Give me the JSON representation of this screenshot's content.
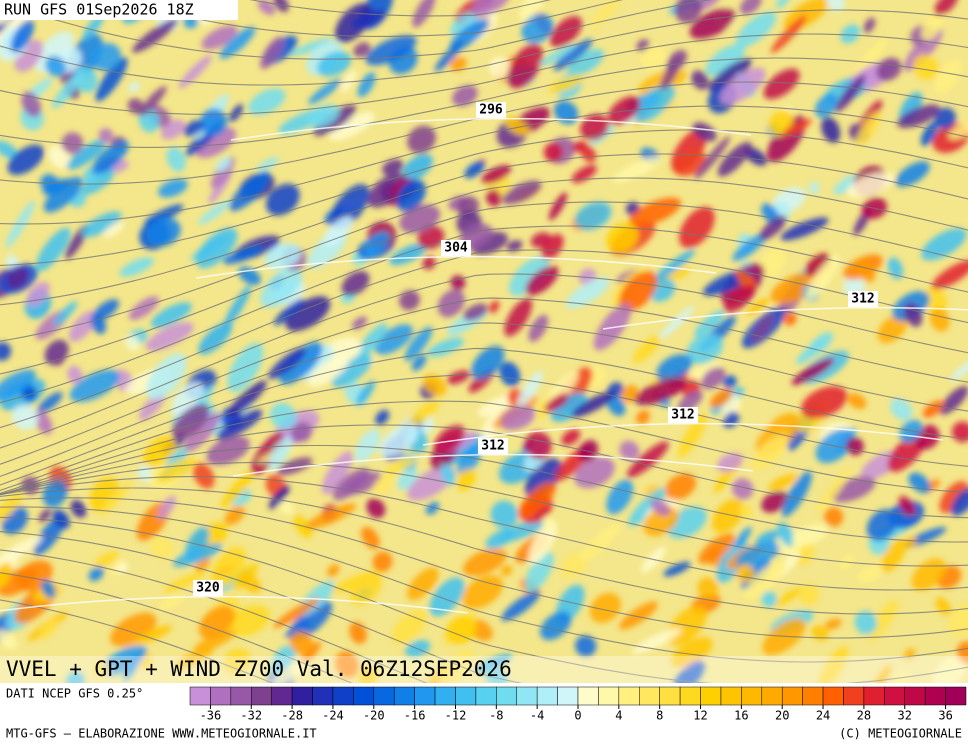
{
  "header": {
    "run": "RUN GFS 01Sep2026 18Z"
  },
  "contour_labels": [
    "296",
    "304",
    "312",
    "312",
    "312",
    "320"
  ],
  "title": "VVEL + GPT + WIND Z700 Val. 06Z12SEP2026",
  "source": "DATI NCEP GFS 0.25°",
  "colorbar": {
    "ticks": [
      -36,
      -32,
      -28,
      -24,
      -20,
      -16,
      -12,
      -8,
      -4,
      0,
      4,
      8,
      12,
      16,
      20,
      24,
      28,
      32,
      36
    ],
    "colors": [
      "#c890d8",
      "#b070c0",
      "#9858a8",
      "#804090",
      "#602890",
      "#3020a0",
      "#2030b8",
      "#1040c8",
      "#0050d8",
      "#0868e0",
      "#1080e8",
      "#2098f0",
      "#30b0f0",
      "#40c0f0",
      "#58d0f0",
      "#70dcf0",
      "#90e6f4",
      "#b0eef8",
      "#d0f6fa",
      "#fffccc",
      "#fff8a8",
      "#fff080",
      "#ffe860",
      "#ffe040",
      "#ffd820",
      "#ffd000",
      "#ffc400",
      "#ffb800",
      "#ffaa00",
      "#ff9800",
      "#ff8000",
      "#ff6000",
      "#f04020",
      "#e02030",
      "#d01040",
      "#c00848",
      "#b00050",
      "#a00058"
    ]
  },
  "footer": {
    "left": "MTG-GFS — ELABORAZIONE WWW.METEOGIORNALE.IT",
    "right": "(C) METEOGIORNALE"
  }
}
